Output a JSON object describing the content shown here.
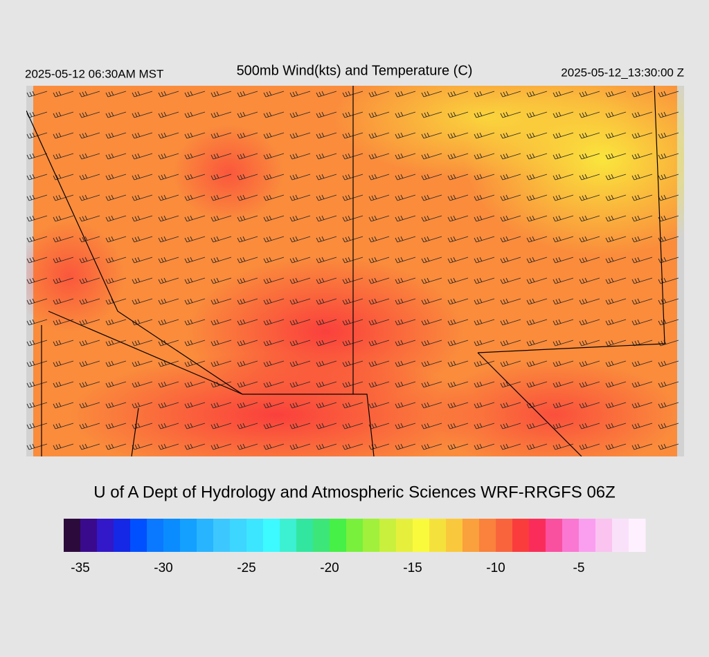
{
  "header": {
    "title": "500mb Wind(kts) and Temperature (C)",
    "local_time": "2025-05-12 06:30AM MST",
    "valid_time": "2025-05-12_13:30:00 Z"
  },
  "credit": "U of A Dept of Hydrology and Atmospheric Sciences WRF-RRGFS 06Z",
  "colorbar": {
    "range": [
      -36,
      -1
    ],
    "ticks": [
      -35,
      -30,
      -25,
      -20,
      -15,
      -10,
      -5
    ],
    "colors": [
      "#2d0a3c",
      "#3a0a8c",
      "#3218c8",
      "#1428e6",
      "#0050ff",
      "#0a78ff",
      "#0a8cff",
      "#14a0ff",
      "#28b4ff",
      "#3cc8ff",
      "#3cd6ff",
      "#3ce6ff",
      "#3cfaff",
      "#3cf0d2",
      "#32e6a0",
      "#3ce678",
      "#46f046",
      "#78f03c",
      "#a0f03c",
      "#c8f03c",
      "#e6f03c",
      "#fafa3c",
      "#f5e13c",
      "#fac83c",
      "#faa03c",
      "#fa823c",
      "#fa643c",
      "#fa3c3c",
      "#fa2d5a",
      "#fa50a0",
      "#fa78d2",
      "#fa9ff0",
      "#fac3f0",
      "#fae1fa",
      "#fff0ff"
    ]
  }
}
